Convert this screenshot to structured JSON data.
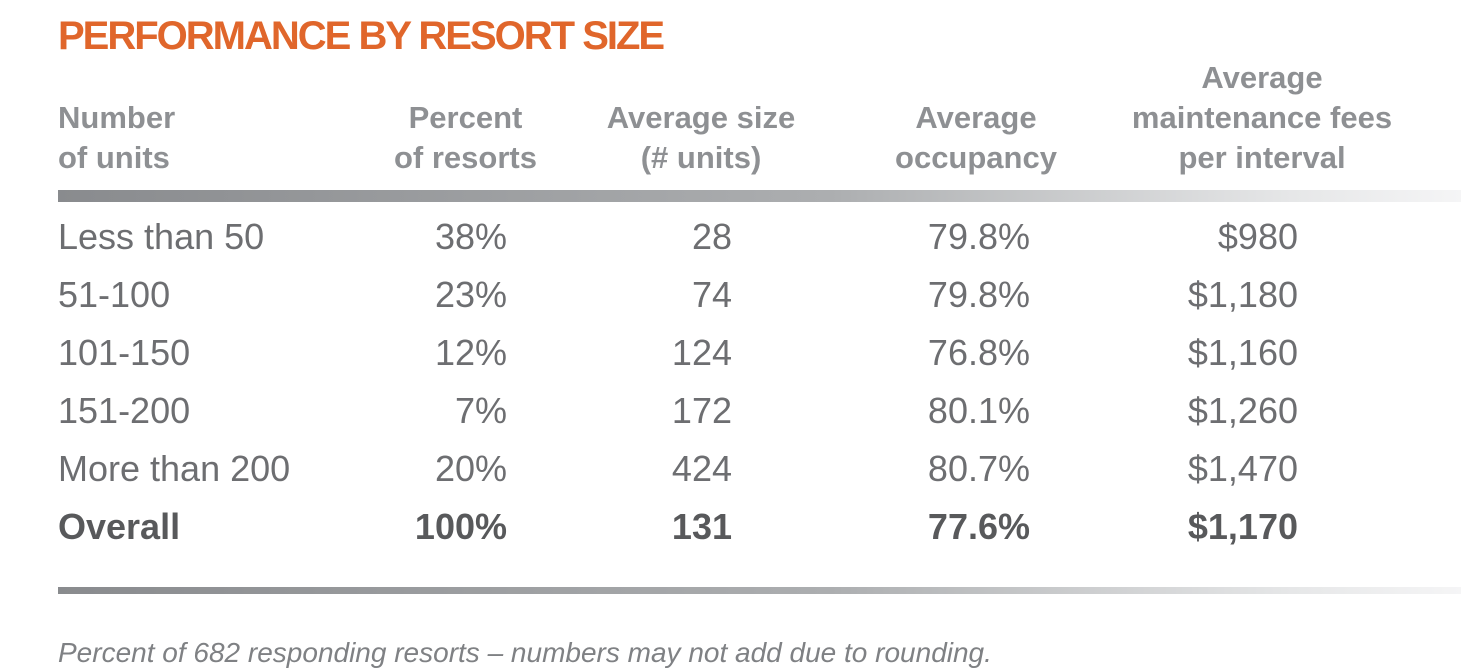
{
  "chart_data": {
    "type": "table",
    "title": "PERFORMANCE BY RESORT SIZE",
    "columns": [
      "Number of units",
      "Percent of resorts",
      "Average size (# units)",
      "Average occupancy",
      "Average maintenance fees per interval"
    ],
    "rows": [
      [
        "Less than 50",
        "38%",
        "28",
        "79.8%",
        "$980"
      ],
      [
        "51-100",
        "23%",
        "74",
        "79.8%",
        "$1,180"
      ],
      [
        "101-150",
        "12%",
        "124",
        "76.8%",
        "$1,160"
      ],
      [
        "151-200",
        "7%",
        "172",
        "80.1%",
        "$1,260"
      ],
      [
        "More than 200",
        "20%",
        "424",
        "80.7%",
        "$1,470"
      ],
      [
        "Overall",
        "100%",
        "131",
        "77.6%",
        "$1,170"
      ]
    ],
    "footnote": "Percent of 682 responding resorts – numbers may not add due to rounding."
  },
  "header_labels": [
    "Number\nof units",
    "Percent\nof resorts",
    "Average size\n(# units)",
    "Average\noccupancy",
    "Average\nmaintenance fees\nper interval"
  ],
  "colors": {
    "title_orange": "#E0662B",
    "header_text_gray": "#8E9093",
    "body_text_gray": "#6D6E71",
    "overall_row_text": "#58595B",
    "footnote_text": "#7F8184",
    "rule_gradient_left": "#898B8E",
    "rule_gradient_right": "#F5F5F6"
  }
}
